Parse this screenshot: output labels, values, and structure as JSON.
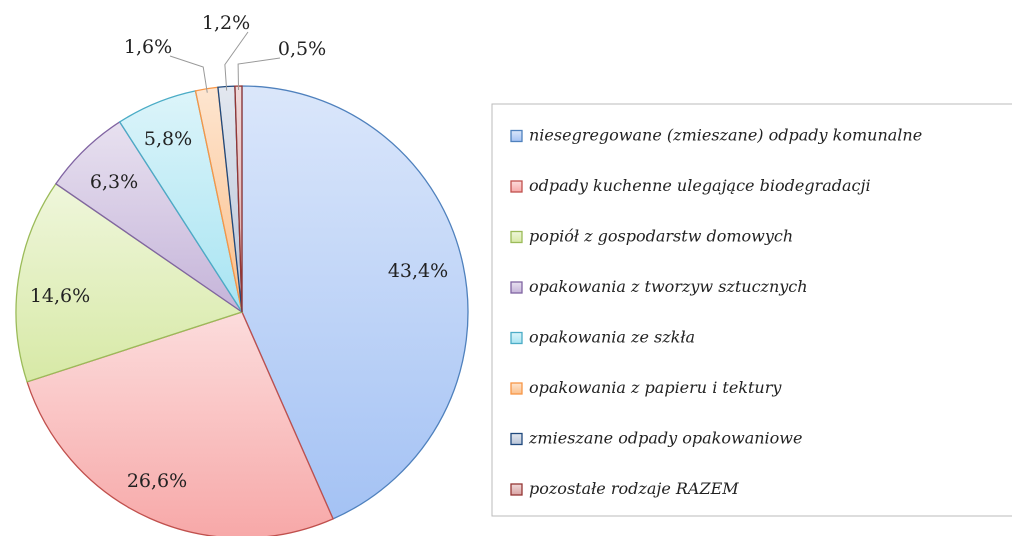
{
  "chart_data": {
    "type": "pie",
    "categories": [
      "niesegregowane (zmieszane) odpady komunalne",
      "odpady kuchenne ulegające biodegradacji",
      "popiół z gospodarstw domowych",
      "opakowania z tworzyw sztucznych",
      "opakowania ze szkła",
      "opakowania z papieru i tektury",
      "zmieszane odpady opakowaniowe",
      "pozostałe rodzaje RAZEM"
    ],
    "values": [
      43.4,
      26.6,
      14.6,
      6.3,
      5.8,
      1.6,
      1.2,
      0.5
    ],
    "value_labels": [
      "43,4%",
      "26,6%",
      "14,6%",
      "6,3%",
      "5,8%",
      "1,6%",
      "1,2%",
      "0,5%"
    ],
    "colors": [
      "#a4c2f4",
      "#f7a8a8",
      "#d7e9a6",
      "#c5b4d9",
      "#a8e4f2",
      "#fbbf8a",
      "#b8c4d8",
      "#d9a3a3"
    ],
    "edge_colors": [
      "#4f81bd",
      "#c0504d",
      "#9bbb59",
      "#8064a2",
      "#4bacc6",
      "#f79646",
      "#1f497d",
      "#943634"
    ],
    "legend": "right"
  }
}
